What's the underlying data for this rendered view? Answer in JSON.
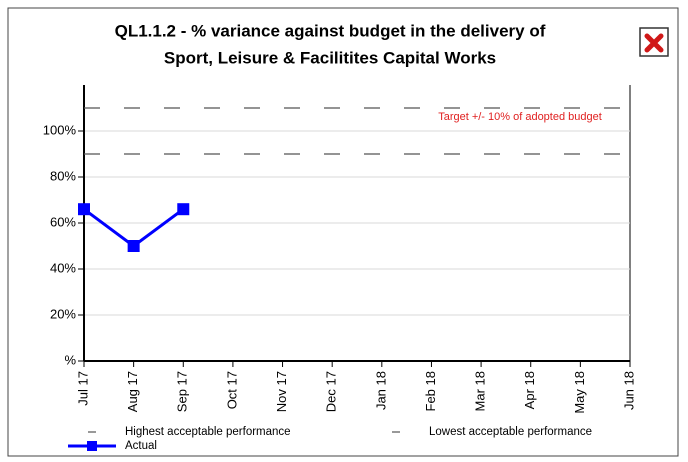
{
  "chart_data": {
    "type": "line",
    "title": "QL1.1.2 - % variance against budget in the delivery of",
    "subtitle": "Sport, Leisure & Facilitites Capital Works",
    "annotation": "Target  +/- 10% of adopted budget",
    "categories": [
      "Jul 17",
      "Aug 17",
      "Sep 17",
      "Oct 17",
      "Nov 17",
      "Dec 17",
      "Jan 18",
      "Feb 18",
      "Mar 18",
      "Apr 18",
      "May 18",
      "Jun 18"
    ],
    "series": [
      {
        "name": "Highest acceptable performance",
        "color": "#555555",
        "dashed": true,
        "values": [
          110,
          110,
          110,
          110,
          110,
          110,
          110,
          110,
          110,
          110,
          110,
          110
        ]
      },
      {
        "name": "Lowest acceptable performance",
        "color": "#555555",
        "dashed": true,
        "values": [
          90,
          90,
          90,
          90,
          90,
          90,
          90,
          90,
          90,
          90,
          90,
          90
        ]
      },
      {
        "name": "Actual",
        "color": "#0000ff",
        "dashed": false,
        "values": [
          66,
          50,
          66,
          null,
          null,
          null,
          null,
          null,
          null,
          null,
          null,
          null
        ]
      }
    ],
    "ylim": [
      0,
      120
    ],
    "yticks": [
      {
        "value": 0,
        "label": "%"
      },
      {
        "value": 20,
        "label": "20%"
      },
      {
        "value": 40,
        "label": "40%"
      },
      {
        "value": 60,
        "label": "60%"
      },
      {
        "value": 80,
        "label": "80%"
      },
      {
        "value": 100,
        "label": "100%"
      }
    ],
    "grid": true
  }
}
